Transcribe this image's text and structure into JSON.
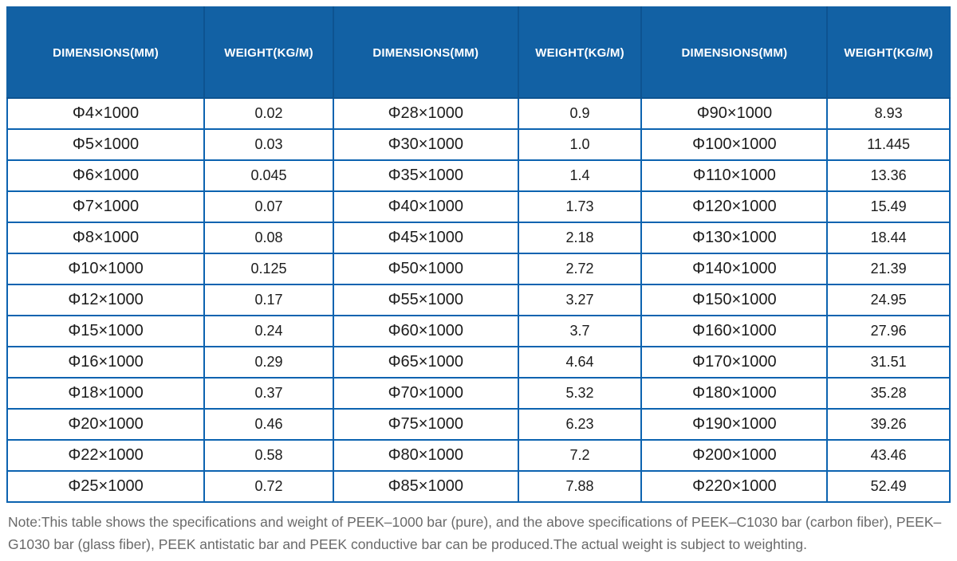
{
  "colors": {
    "header_bg": "#1261a4",
    "header_text": "#ffffff",
    "cell_border": "#0c63b0",
    "cell_text": "#1c1c1c",
    "note_text": "#6a6a6a"
  },
  "table": {
    "columns": [
      "DIMENSIONS(MM)",
      "WEIGHT(KG/M)",
      "DIMENSIONS(MM)",
      "WEIGHT(KG/M)",
      "DIMENSIONS(MM)",
      "WEIGHT(KG/M)"
    ],
    "rows": [
      [
        "Φ4×1000",
        "0.02",
        "Φ28×1000",
        "0.9",
        "Φ90×1000",
        "8.93"
      ],
      [
        "Φ5×1000",
        "0.03",
        "Φ30×1000",
        "1.0",
        "Φ100×1000",
        "11.445"
      ],
      [
        "Φ6×1000",
        "0.045",
        "Φ35×1000",
        "1.4",
        "Φ110×1000",
        "13.36"
      ],
      [
        "Φ7×1000",
        "0.07",
        "Φ40×1000",
        "1.73",
        "Φ120×1000",
        "15.49"
      ],
      [
        "Φ8×1000",
        "0.08",
        "Φ45×1000",
        "2.18",
        "Φ130×1000",
        "18.44"
      ],
      [
        "Φ10×1000",
        "0.125",
        "Φ50×1000",
        "2.72",
        "Φ140×1000",
        "21.39"
      ],
      [
        "Φ12×1000",
        "0.17",
        "Φ55×1000",
        "3.27",
        "Φ150×1000",
        "24.95"
      ],
      [
        "Φ15×1000",
        "0.24",
        "Φ60×1000",
        "3.7",
        "Φ160×1000",
        "27.96"
      ],
      [
        "Φ16×1000",
        "0.29",
        "Φ65×1000",
        "4.64",
        "Φ170×1000",
        "31.51"
      ],
      [
        "Φ18×1000",
        "0.37",
        "Φ70×1000",
        "5.32",
        "Φ180×1000",
        "35.28"
      ],
      [
        "Φ20×1000",
        "0.46",
        "Φ75×1000",
        "6.23",
        "Φ190×1000",
        "39.26"
      ],
      [
        "Φ22×1000",
        "0.58",
        "Φ80×1000",
        "7.2",
        "Φ200×1000",
        "43.46"
      ],
      [
        "Φ25×1000",
        "0.72",
        "Φ85×1000",
        "7.88",
        "Φ220×1000",
        "52.49"
      ]
    ]
  },
  "note": {
    "text": "Note:This table shows the specifications and weight of PEEK–1000 bar (pure), and the above specifications of PEEK–C1030 bar (carbon fiber), PEEK–G1030 bar (glass fiber), PEEK antistatic bar and PEEK conductive bar can be produced.The actual weight is subject to weighting."
  }
}
